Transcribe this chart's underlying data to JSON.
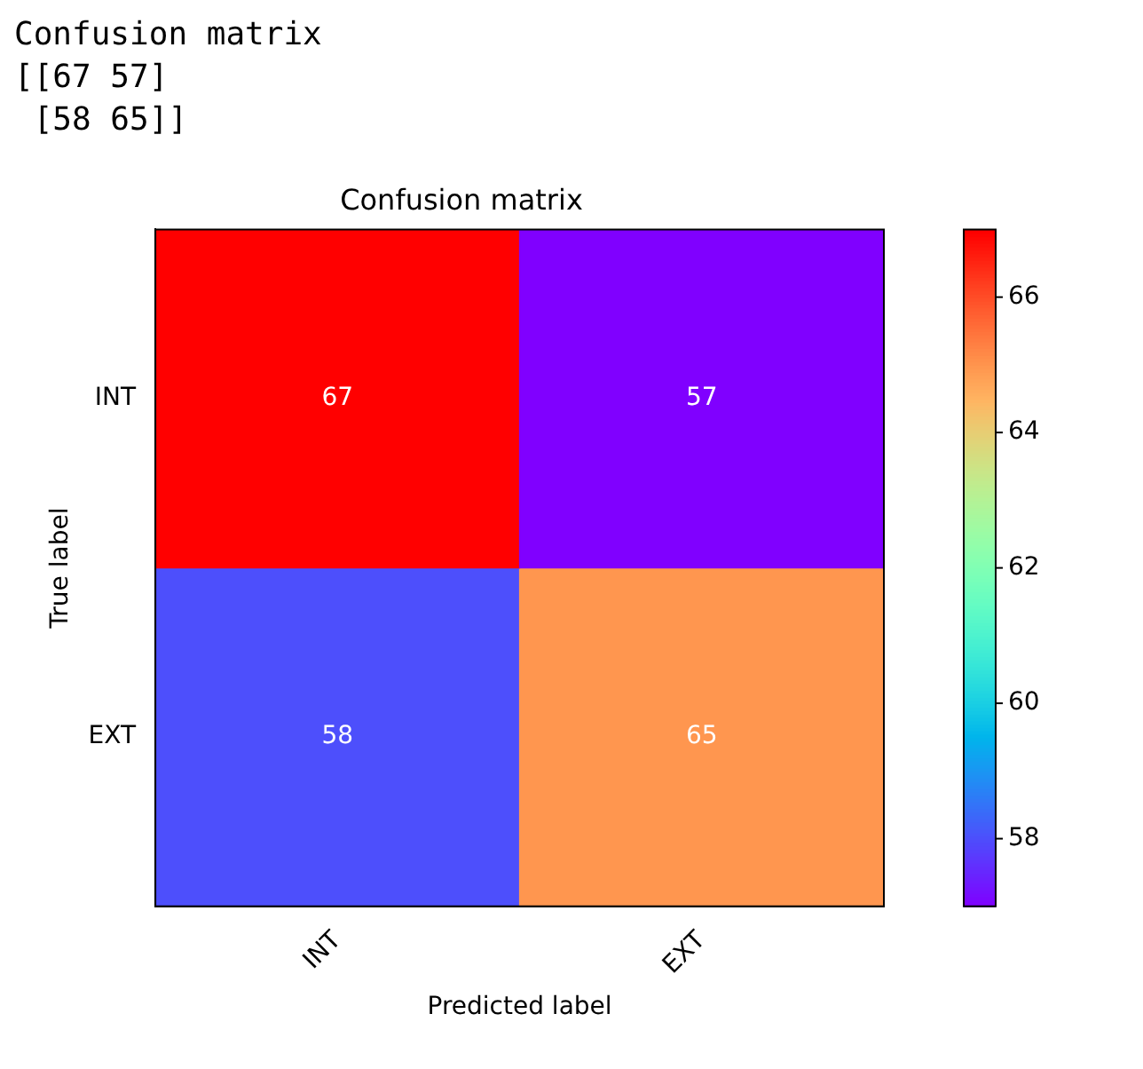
{
  "chart_data": {
    "type": "heatmap",
    "title": "Confusion matrix",
    "xlabel": "Predicted label",
    "ylabel": "True label",
    "categories": [
      "INT",
      "EXT"
    ],
    "y_categories": [
      "INT",
      "EXT"
    ],
    "cells": [
      [
        67,
        57
      ],
      [
        58,
        65
      ]
    ],
    "data_labels": true,
    "clim": [
      57,
      67
    ],
    "cticks": [
      58,
      60,
      62,
      64,
      66
    ],
    "annotations": [
      "Confusion matrix",
      "[[67 57]",
      " [58 65]]"
    ]
  }
}
